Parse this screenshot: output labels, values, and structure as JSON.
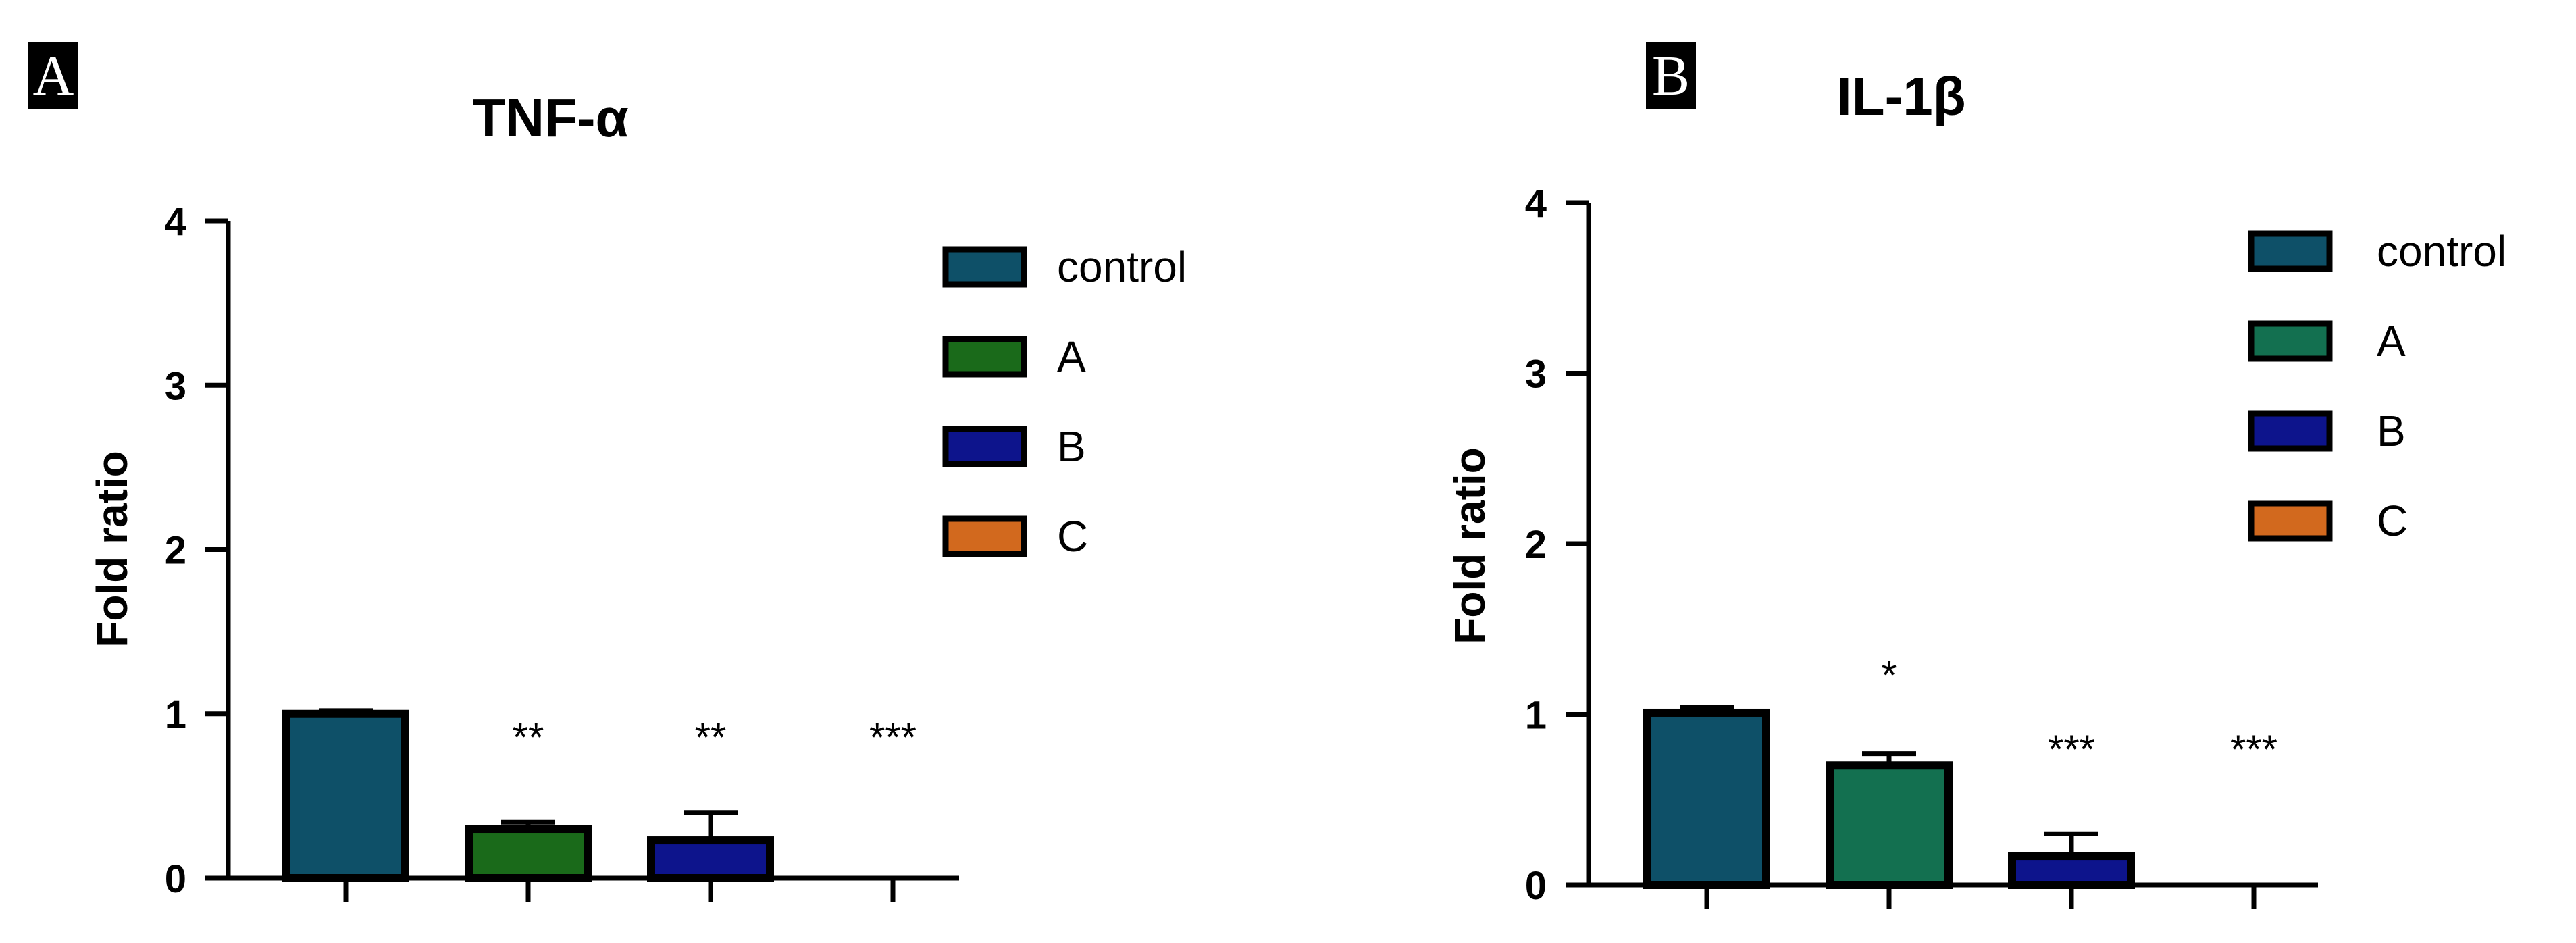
{
  "chart_data": [
    {
      "panel": "A",
      "type": "bar",
      "title": "TNF-α",
      "ylabel": "Fold ratio",
      "xlabel": "",
      "ylim": [
        0,
        4
      ],
      "yticks": [
        "0",
        "1",
        "2",
        "3",
        "4"
      ],
      "grid": false,
      "legend_position": "top-right",
      "categories": [
        "control",
        "A",
        "B",
        "C"
      ],
      "values": [
        1.0,
        0.3,
        0.23,
        0.0
      ],
      "errors": [
        0.02,
        0.04,
        0.17,
        0.0
      ],
      "colors": [
        "#0e5068",
        "#1a6a1a",
        "#0d148c",
        "#d2691e"
      ],
      "significance": [
        "",
        "**",
        "**",
        "***"
      ],
      "legend": [
        {
          "name": "control",
          "color": "#0e5068"
        },
        {
          "name": "A",
          "color": "#1a6a1a"
        },
        {
          "name": "B",
          "color": "#0d148c"
        },
        {
          "name": "C",
          "color": "#d2691e"
        }
      ]
    },
    {
      "panel": "B",
      "type": "bar",
      "title": "IL-1β",
      "ylabel": "Fold ratio",
      "xlabel": "",
      "ylim": [
        0,
        4
      ],
      "yticks": [
        "0",
        "1",
        "2",
        "3",
        "4"
      ],
      "grid": false,
      "legend_position": "top-right",
      "categories": [
        "control",
        "A",
        "B",
        "C"
      ],
      "values": [
        1.01,
        0.7,
        0.17,
        0.0
      ],
      "errors": [
        0.03,
        0.07,
        0.13,
        0.0
      ],
      "colors": [
        "#0e5068",
        "#137050",
        "#0d148c",
        "#d2691e"
      ],
      "significance": [
        "",
        "*",
        "***",
        "***"
      ],
      "legend": [
        {
          "name": "control",
          "color": "#0e5068"
        },
        {
          "name": "A",
          "color": "#137050"
        },
        {
          "name": "B",
          "color": "#0d148c"
        },
        {
          "name": "C",
          "color": "#d2691e"
        }
      ]
    }
  ]
}
